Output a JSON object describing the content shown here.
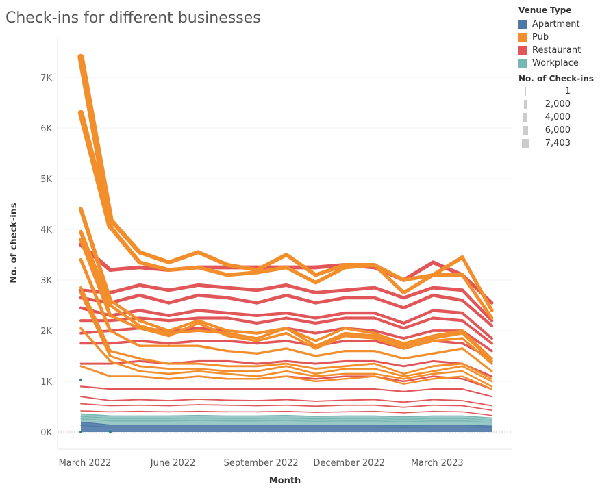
{
  "chart_data": {
    "type": "line",
    "title": "Check-ins for different businesses",
    "xlabel": "Month",
    "ylabel": "No. of check-ins",
    "x": [
      "2022-03",
      "2022-04",
      "2022-05",
      "2022-06",
      "2022-07",
      "2022-08",
      "2022-09",
      "2022-10",
      "2022-11",
      "2022-12",
      "2023-01",
      "2023-02",
      "2023-03",
      "2023-04",
      "2023-05"
    ],
    "x_ticks": [
      {
        "label": "March 2022",
        "index": 0
      },
      {
        "label": "June 2022",
        "index": 3
      },
      {
        "label": "September 2022",
        "index": 6
      },
      {
        "label": "December 2022",
        "index": 9
      },
      {
        "label": "March 2023",
        "index": 12
      }
    ],
    "ylim": [
      0,
      7800
    ],
    "y_ticks": [
      {
        "label": "0K",
        "value": 0
      },
      {
        "label": "1K",
        "value": 1000
      },
      {
        "label": "2K",
        "value": 2000
      },
      {
        "label": "3K",
        "value": 3000
      },
      {
        "label": "4K",
        "value": 4000
      },
      {
        "label": "5K",
        "value": 5000
      },
      {
        "label": "6K",
        "value": 6000
      },
      {
        "label": "7K",
        "value": 7000
      }
    ],
    "grid": true,
    "legend_placement": "right",
    "color_legend": {
      "title": "Venue Type",
      "items": [
        {
          "label": "Apartment",
          "color": "#4e79a7"
        },
        {
          "label": "Pub",
          "color": "#f28e2b"
        },
        {
          "label": "Restaurant",
          "color": "#e15759"
        },
        {
          "label": "Workplace",
          "color": "#76b7b2"
        }
      ]
    },
    "size_legend": {
      "title": "No. of Check-ins",
      "items": [
        {
          "label": "1",
          "value": 1
        },
        {
          "label": "2,000",
          "value": 2000
        },
        {
          "label": "4,000",
          "value": 4000
        },
        {
          "label": "6,000",
          "value": 6000
        },
        {
          "label": "7,403",
          "value": 7403
        }
      ]
    },
    "series": [
      {
        "type": "Pub",
        "values": [
          7400,
          4200,
          3550,
          3350,
          3550,
          3300,
          3200,
          3500,
          3100,
          3300,
          3300,
          3000,
          3100,
          3450,
          2400
        ]
      },
      {
        "type": "Pub",
        "values": [
          6300,
          4050,
          3350,
          3200,
          3250,
          3100,
          3150,
          3250,
          2950,
          3250,
          3300,
          2750,
          3100,
          3100,
          2250
        ]
      },
      {
        "type": "Pub",
        "values": [
          4400,
          2600,
          2200,
          2000,
          2200,
          2000,
          1950,
          2050,
          1800,
          2050,
          1950,
          1750,
          1900,
          2000,
          1450
        ]
      },
      {
        "type": "Pub",
        "values": [
          3950,
          2500,
          2100,
          1950,
          2000,
          1950,
          1850,
          2050,
          1700,
          1950,
          1900,
          1700,
          1850,
          1950,
          1400
        ]
      },
      {
        "type": "Pub",
        "values": [
          3800,
          2300,
          2050,
          1900,
          2150,
          1900,
          1800,
          1950,
          1650,
          1900,
          1850,
          1650,
          1800,
          1850,
          1350
        ]
      },
      {
        "type": "Pub",
        "values": [
          3400,
          2000,
          1700,
          1700,
          1700,
          1600,
          1550,
          1650,
          1500,
          1600,
          1600,
          1450,
          1550,
          1650,
          1200
        ]
      },
      {
        "type": "Pub",
        "values": [
          2850,
          1600,
          1450,
          1350,
          1350,
          1300,
          1300,
          1350,
          1250,
          1300,
          1350,
          1150,
          1300,
          1350,
          1050
        ]
      },
      {
        "type": "Pub",
        "values": [
          2750,
          1500,
          1300,
          1250,
          1250,
          1200,
          1200,
          1300,
          1150,
          1250,
          1250,
          1100,
          1200,
          1300,
          1000
        ]
      },
      {
        "type": "Pub",
        "values": [
          2050,
          1400,
          1200,
          1150,
          1200,
          1150,
          1100,
          1200,
          1100,
          1150,
          1150,
          1050,
          1150,
          1200,
          900
        ]
      },
      {
        "type": "Pub",
        "values": [
          1300,
          1100,
          1100,
          1050,
          1100,
          1050,
          1050,
          1100,
          1000,
          1050,
          1100,
          950,
          1050,
          1100,
          850
        ]
      },
      {
        "type": "Restaurant",
        "values": [
          3700,
          3200,
          3250,
          3200,
          3250,
          3250,
          3250,
          3250,
          3250,
          3300,
          3250,
          3000,
          3350,
          3100,
          2550
        ]
      },
      {
        "type": "Restaurant",
        "values": [
          2800,
          2750,
          2900,
          2800,
          2900,
          2850,
          2800,
          2900,
          2750,
          2800,
          2850,
          2650,
          2850,
          2800,
          2200
        ]
      },
      {
        "type": "Restaurant",
        "values": [
          2650,
          2550,
          2700,
          2550,
          2700,
          2650,
          2550,
          2700,
          2550,
          2650,
          2650,
          2450,
          2700,
          2600,
          2100
        ]
      },
      {
        "type": "Restaurant",
        "values": [
          2450,
          2300,
          2400,
          2300,
          2400,
          2350,
          2300,
          2350,
          2250,
          2350,
          2350,
          2150,
          2400,
          2350,
          1850
        ]
      },
      {
        "type": "Restaurant",
        "values": [
          2200,
          2200,
          2250,
          2200,
          2250,
          2250,
          2150,
          2250,
          2150,
          2250,
          2250,
          2050,
          2250,
          2200,
          1750
        ]
      },
      {
        "type": "Restaurant",
        "values": [
          1950,
          2000,
          2050,
          2000,
          2050,
          2000,
          1950,
          2050,
          1950,
          2050,
          2000,
          1850,
          2000,
          2000,
          1600
        ]
      },
      {
        "type": "Restaurant",
        "values": [
          1750,
          1750,
          1800,
          1750,
          1800,
          1800,
          1750,
          1800,
          1700,
          1800,
          1800,
          1650,
          1800,
          1750,
          1450
        ]
      },
      {
        "type": "Restaurant",
        "values": [
          1350,
          1350,
          1400,
          1350,
          1400,
          1400,
          1350,
          1400,
          1350,
          1400,
          1400,
          1300,
          1400,
          1350,
          1100
        ]
      },
      {
        "type": "Restaurant",
        "values": [
          1300,
          1100,
          1100,
          1050,
          1100,
          1050,
          1050,
          1100,
          1050,
          1100,
          1100,
          1000,
          1100,
          1050,
          850
        ]
      },
      {
        "type": "Restaurant",
        "values": [
          900,
          850,
          850,
          850,
          850,
          850,
          850,
          850,
          850,
          850,
          850,
          800,
          850,
          850,
          700
        ]
      },
      {
        "type": "Restaurant",
        "values": [
          700,
          620,
          640,
          620,
          650,
          630,
          620,
          640,
          610,
          630,
          640,
          590,
          640,
          620,
          520
        ]
      },
      {
        "type": "Restaurant",
        "values": [
          560,
          520,
          530,
          520,
          540,
          530,
          520,
          530,
          510,
          530,
          530,
          490,
          530,
          520,
          430
        ]
      },
      {
        "type": "Restaurant",
        "values": [
          420,
          400,
          410,
          400,
          410,
          400,
          400,
          410,
          390,
          400,
          410,
          380,
          410,
          400,
          330
        ]
      },
      {
        "type": "Workplace",
        "values": [
          360,
          320,
          320,
          320,
          330,
          320,
          320,
          330,
          310,
          320,
          320,
          300,
          320,
          320,
          280
        ]
      },
      {
        "type": "Workplace",
        "values": [
          310,
          270,
          270,
          270,
          280,
          270,
          270,
          280,
          260,
          270,
          270,
          250,
          270,
          270,
          230
        ]
      },
      {
        "type": "Workplace",
        "values": [
          260,
          220,
          220,
          220,
          230,
          220,
          220,
          230,
          210,
          220,
          220,
          200,
          220,
          220,
          190
        ]
      },
      {
        "type": "Apartment",
        "values": [
          200,
          140,
          140,
          140,
          140,
          140,
          140,
          140,
          140,
          140,
          140,
          130,
          140,
          140,
          120
        ]
      },
      {
        "type": "Apartment",
        "values": [
          130,
          100,
          100,
          100,
          100,
          100,
          100,
          100,
          100,
          100,
          100,
          90,
          100,
          100,
          90
        ]
      }
    ],
    "annotations_points": [
      {
        "type": "Apartment",
        "x_index": 0,
        "value": 1030
      },
      {
        "type": "Apartment",
        "x_index": 0,
        "value": 0
      },
      {
        "type": "Apartment",
        "x_index": 1,
        "value": 0
      }
    ]
  }
}
